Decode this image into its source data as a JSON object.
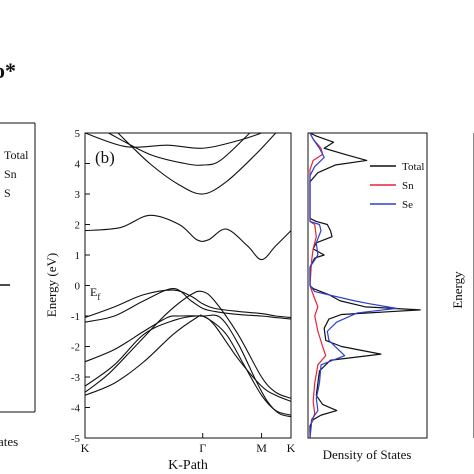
{
  "left_fragment": {
    "corner_label": "o*",
    "legend": [
      "Total",
      "Sn",
      "S"
    ],
    "xlabel_partial": "ates"
  },
  "right_fragment": {
    "ylabel_partial": "Energy"
  },
  "chart_data": [
    {
      "type": "line",
      "panel_label": "(b)",
      "xlabel": "K-Path",
      "ylabel": "Energy (eV)",
      "ylim": [
        -5,
        5
      ],
      "yticks": [
        "-5",
        "-4",
        "-3",
        "-2",
        "-1",
        "0",
        "1",
        "2",
        "3",
        "4",
        "5"
      ],
      "xticks": [
        {
          "label": "K",
          "k": 0
        },
        {
          "label": "Γ",
          "k": 1
        },
        {
          "label": "M",
          "k": 1.5
        },
        {
          "label": "K",
          "k": 1.75
        }
      ],
      "annotation": "E_f",
      "series": [
        {
          "values": [
            [
              0,
              5.0
            ],
            [
              0.35,
              4.55
            ],
            [
              0.7,
              4.6
            ],
            [
              1.0,
              4.5
            ],
            [
              1.3,
              4.75
            ],
            [
              1.5,
              5.0
            ]
          ]
        },
        {
          "values": [
            [
              0.2,
              5.0
            ],
            [
              0.55,
              4.3
            ],
            [
              0.85,
              4.0
            ],
            [
              1.0,
              3.95
            ],
            [
              1.15,
              4.1
            ],
            [
              1.4,
              5.0
            ]
          ]
        },
        {
          "values": [
            [
              0.28,
              5.0
            ],
            [
              0.55,
              4.0
            ],
            [
              0.8,
              3.3
            ],
            [
              1.0,
              3.0
            ],
            [
              1.2,
              3.4
            ],
            [
              1.45,
              4.3
            ],
            [
              1.62,
              5.0
            ]
          ]
        },
        {
          "values": [
            [
              0,
              1.8
            ],
            [
              0.3,
              1.9
            ],
            [
              0.55,
              2.3
            ],
            [
              0.8,
              2.0
            ],
            [
              0.95,
              1.5
            ],
            [
              1.05,
              1.5
            ],
            [
              1.2,
              1.85
            ],
            [
              1.38,
              1.3
            ],
            [
              1.5,
              0.85
            ],
            [
              1.62,
              1.3
            ],
            [
              1.75,
              1.8
            ]
          ]
        },
        {
          "values": [
            [
              0,
              -1.05
            ],
            [
              0.25,
              -0.7
            ],
            [
              0.5,
              -0.3
            ],
            [
              0.75,
              -0.15
            ],
            [
              0.9,
              -0.35
            ],
            [
              1.0,
              -0.6
            ],
            [
              1.1,
              -0.75
            ],
            [
              1.3,
              -0.85
            ],
            [
              1.5,
              -0.92
            ],
            [
              1.62,
              -1.0
            ],
            [
              1.75,
              -1.05
            ]
          ]
        },
        {
          "values": [
            [
              0,
              -1.2
            ],
            [
              0.25,
              -1.0
            ],
            [
              0.5,
              -0.5
            ],
            [
              0.75,
              -0.1
            ],
            [
              0.9,
              -0.5
            ],
            [
              1.0,
              -0.75
            ],
            [
              1.1,
              -0.85
            ],
            [
              1.3,
              -0.95
            ],
            [
              1.5,
              -1.0
            ],
            [
              1.62,
              -1.05
            ],
            [
              1.75,
              -1.1
            ]
          ]
        },
        {
          "values": [
            [
              0,
              -3.5
            ],
            [
              0.2,
              -2.9
            ],
            [
              0.45,
              -1.9
            ],
            [
              0.7,
              -0.9
            ],
            [
              0.9,
              -0.3
            ],
            [
              1.0,
              -0.2
            ],
            [
              1.1,
              -0.5
            ],
            [
              1.3,
              -1.6
            ],
            [
              1.5,
              -3.0
            ],
            [
              1.62,
              -3.5
            ],
            [
              1.75,
              -3.7
            ]
          ]
        },
        {
          "values": [
            [
              0,
              -3.6
            ],
            [
              0.25,
              -3.2
            ],
            [
              0.5,
              -2.5
            ],
            [
              0.75,
              -1.6
            ],
            [
              0.95,
              -1.05
            ],
            [
              1.0,
              -1.0
            ],
            [
              1.1,
              -1.3
            ],
            [
              1.3,
              -2.4
            ],
            [
              1.5,
              -3.3
            ],
            [
              1.62,
              -3.6
            ],
            [
              1.75,
              -3.8
            ]
          ]
        },
        {
          "values": [
            [
              0,
              -2.5
            ],
            [
              0.25,
              -2.1
            ],
            [
              0.5,
              -1.5
            ],
            [
              0.7,
              -1.05
            ],
            [
              0.8,
              -1.0
            ],
            [
              1.0,
              -1.0
            ],
            [
              1.15,
              -1.05
            ],
            [
              1.3,
              -1.9
            ],
            [
              1.45,
              -3.1
            ],
            [
              1.55,
              -3.8
            ],
            [
              1.65,
              -4.2
            ],
            [
              1.75,
              -4.3
            ]
          ]
        },
        {
          "values": [
            [
              0,
              -3.3
            ],
            [
              0.25,
              -2.6
            ],
            [
              0.5,
              -1.6
            ],
            [
              0.75,
              -1.15
            ],
            [
              0.95,
              -1.0
            ],
            [
              1.05,
              -1.1
            ],
            [
              1.2,
              -1.6
            ],
            [
              1.35,
              -2.6
            ],
            [
              1.5,
              -3.6
            ],
            [
              1.62,
              -4.1
            ],
            [
              1.75,
              -4.25
            ]
          ]
        }
      ]
    },
    {
      "type": "line",
      "xlabel": "Density of States",
      "legend_placement": "top-right",
      "series": [
        {
          "name": "Total",
          "color": "#111111",
          "values": [
            [
              5,
              0.0
            ],
            [
              4.9,
              0.4
            ],
            [
              4.7,
              1.5
            ],
            [
              4.5,
              0.9
            ],
            [
              4.3,
              2.2
            ],
            [
              4.1,
              3.6
            ],
            [
              3.95,
              1.6
            ],
            [
              3.7,
              0.5
            ],
            [
              3.4,
              0.0
            ],
            [
              2.2,
              0.0
            ],
            [
              2.1,
              0.4
            ],
            [
              2.0,
              1.1
            ],
            [
              1.8,
              1.3
            ],
            [
              1.6,
              1.4
            ],
            [
              1.4,
              0.4
            ],
            [
              1.2,
              0.2
            ],
            [
              1.0,
              0.9
            ],
            [
              0.9,
              0.3
            ],
            [
              0.6,
              0.0
            ],
            [
              0.0,
              0.0
            ],
            [
              -0.1,
              0.2
            ],
            [
              -0.3,
              1.2
            ],
            [
              -0.5,
              1.9
            ],
            [
              -0.7,
              3.5
            ],
            [
              -0.8,
              7.0
            ],
            [
              -0.95,
              2.0
            ],
            [
              -1.1,
              1.2
            ],
            [
              -1.4,
              0.9
            ],
            [
              -1.8,
              1.0
            ],
            [
              -2.0,
              2.0
            ],
            [
              -2.25,
              4.5
            ],
            [
              -2.45,
              1.3
            ],
            [
              -2.8,
              0.6
            ],
            [
              -3.2,
              0.5
            ],
            [
              -3.6,
              0.4
            ],
            [
              -3.9,
              0.8
            ],
            [
              -4.1,
              1.7
            ],
            [
              -4.25,
              0.7
            ],
            [
              -4.4,
              0.2
            ],
            [
              -4.6,
              0.0
            ],
            [
              -5.0,
              0.0
            ]
          ]
        },
        {
          "name": "Sn",
          "color": "#e5233a",
          "values": [
            [
              5,
              0.0
            ],
            [
              4.8,
              0.2
            ],
            [
              4.5,
              0.7
            ],
            [
              4.3,
              0.8
            ],
            [
              4.1,
              0.2
            ],
            [
              3.8,
              0.0
            ],
            [
              2.1,
              0.0
            ],
            [
              2.0,
              0.3
            ],
            [
              1.6,
              0.4
            ],
            [
              1.2,
              0.2
            ],
            [
              0.8,
              0.1
            ],
            [
              0.0,
              0.0
            ],
            [
              -0.3,
              0.2
            ],
            [
              -0.7,
              0.5
            ],
            [
              -1.0,
              0.3
            ],
            [
              -1.5,
              0.5
            ],
            [
              -2.0,
              0.8
            ],
            [
              -2.3,
              1.0
            ],
            [
              -2.6,
              0.5
            ],
            [
              -3.2,
              0.3
            ],
            [
              -3.8,
              0.2
            ],
            [
              -4.2,
              0.3
            ],
            [
              -4.5,
              0.1
            ],
            [
              -5.0,
              0.0
            ]
          ]
        },
        {
          "name": "Se",
          "color": "#2b3fd4",
          "values": [
            [
              5,
              0.0
            ],
            [
              4.8,
              0.2
            ],
            [
              4.5,
              0.6
            ],
            [
              4.2,
              0.9
            ],
            [
              3.9,
              0.3
            ],
            [
              3.6,
              0.0
            ],
            [
              2.1,
              0.0
            ],
            [
              2.0,
              0.6
            ],
            [
              1.8,
              0.7
            ],
            [
              1.4,
              0.4
            ],
            [
              1.0,
              0.5
            ],
            [
              0.6,
              0.0
            ],
            [
              0.0,
              0.0
            ],
            [
              -0.2,
              0.3
            ],
            [
              -0.5,
              2.8
            ],
            [
              -0.6,
              3.8
            ],
            [
              -0.75,
              5.5
            ],
            [
              -0.9,
              3.0
            ],
            [
              -1.2,
              1.7
            ],
            [
              -1.5,
              1.1
            ],
            [
              -1.8,
              1.2
            ],
            [
              -2.1,
              1.8
            ],
            [
              -2.3,
              2.2
            ],
            [
              -2.6,
              0.7
            ],
            [
              -3.2,
              0.6
            ],
            [
              -3.7,
              0.4
            ],
            [
              -4.1,
              0.5
            ],
            [
              -4.4,
              0.1
            ],
            [
              -5.0,
              0.0
            ]
          ]
        }
      ]
    }
  ]
}
